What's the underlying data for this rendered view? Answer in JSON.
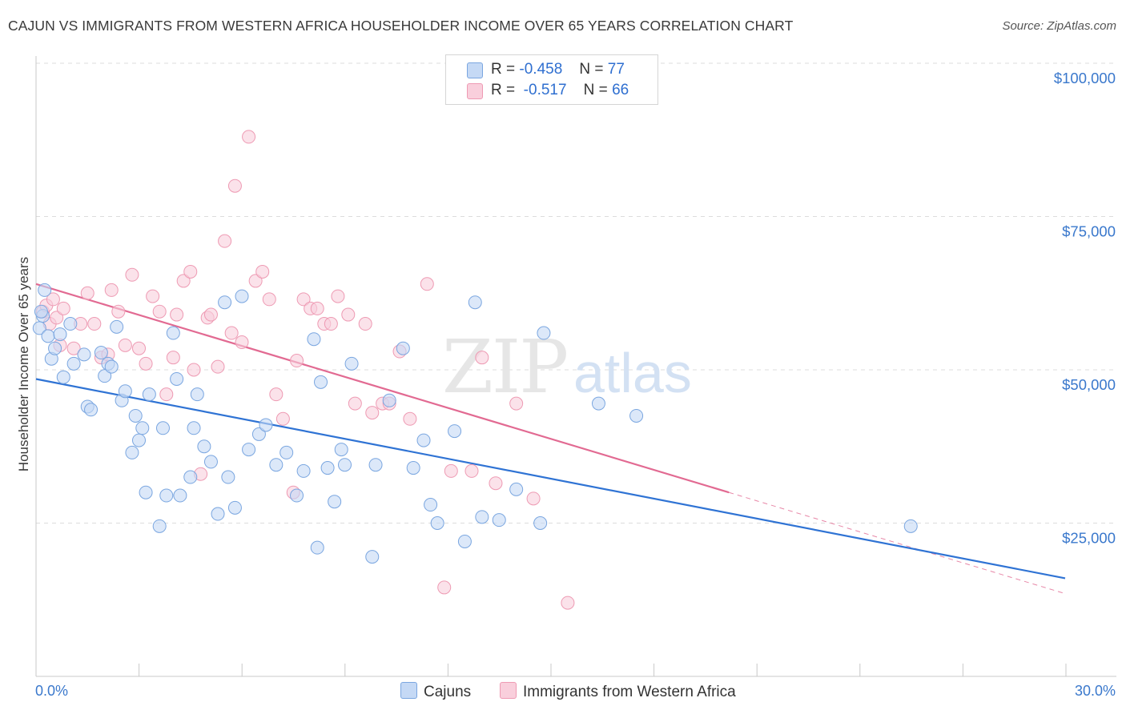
{
  "title": "CAJUN VS IMMIGRANTS FROM WESTERN AFRICA HOUSEHOLDER INCOME OVER 65 YEARS CORRELATION CHART",
  "source": "Source: ZipAtlas.com",
  "watermark": {
    "zip": "ZIP",
    "atlas": "atlas"
  },
  "colors": {
    "blue_fill": "#c5d9f5",
    "blue_stroke": "#7aa6e0",
    "blue_line": "#2f73d4",
    "pink_fill": "#f9cfdc",
    "pink_stroke": "#ee9ab3",
    "pink_line": "#e26a92",
    "axis_label": "#3a78cc",
    "grid": "#dcdcdc"
  },
  "legend": {
    "rows": [
      {
        "r_label": "R =",
        "r_value": "-0.458",
        "n_label": "N =",
        "n_value": "77"
      },
      {
        "r_label": "R =",
        "r_value": "-0.517",
        "n_label": "N =",
        "n_value": "66"
      }
    ]
  },
  "bottom_legend": {
    "series1": "Cajuns",
    "series2": "Immigrants from Western Africa"
  },
  "chart_data": {
    "type": "scatter",
    "title": "CAJUN VS IMMIGRANTS FROM WESTERN AFRICA HOUSEHOLDER INCOME OVER 65 YEARS CORRELATION CHART",
    "xlabel": "",
    "ylabel": "Householder Income Over 65 years",
    "xlim": [
      0,
      30
    ],
    "ylim": [
      0,
      105000
    ],
    "x_tick_labels": {
      "min": "0.0%",
      "max": "30.0%"
    },
    "y_ticks": [
      {
        "value": 100000,
        "label": "$100,000"
      },
      {
        "value": 75000,
        "label": "$75,000"
      },
      {
        "value": 50000,
        "label": "$50,000"
      },
      {
        "value": 25000,
        "label": "$25,000"
      }
    ],
    "series": [
      {
        "name": "Cajuns",
        "r": -0.458,
        "n": 77,
        "trend": {
          "x0": 0,
          "y0": 48500,
          "x1": 30,
          "y1": 16000,
          "dash_from": null
        },
        "points": [
          [
            0.1,
            56800
          ],
          [
            0.2,
            58800
          ],
          [
            0.25,
            63000
          ],
          [
            0.35,
            55500
          ],
          [
            0.45,
            51800
          ],
          [
            0.55,
            53500
          ],
          [
            0.7,
            55800
          ],
          [
            0.8,
            48800
          ],
          [
            1.0,
            57500
          ],
          [
            1.1,
            51000
          ],
          [
            1.4,
            52500
          ],
          [
            1.5,
            44000
          ],
          [
            1.6,
            43500
          ],
          [
            1.9,
            52800
          ],
          [
            2.0,
            49000
          ],
          [
            2.1,
            51000
          ],
          [
            2.2,
            50500
          ],
          [
            2.35,
            57000
          ],
          [
            2.5,
            45000
          ],
          [
            2.6,
            46500
          ],
          [
            2.8,
            36500
          ],
          [
            2.9,
            42500
          ],
          [
            3.0,
            38500
          ],
          [
            3.1,
            40500
          ],
          [
            3.2,
            30000
          ],
          [
            3.3,
            46000
          ],
          [
            3.6,
            24500
          ],
          [
            3.7,
            40500
          ],
          [
            3.8,
            29500
          ],
          [
            4.0,
            56000
          ],
          [
            4.1,
            48500
          ],
          [
            4.2,
            29500
          ],
          [
            4.5,
            32500
          ],
          [
            4.6,
            40500
          ],
          [
            4.7,
            46000
          ],
          [
            4.9,
            37500
          ],
          [
            5.1,
            35000
          ],
          [
            5.3,
            26500
          ],
          [
            5.5,
            61000
          ],
          [
            5.6,
            32500
          ],
          [
            5.8,
            27500
          ],
          [
            6.0,
            62000
          ],
          [
            6.2,
            37000
          ],
          [
            6.5,
            39500
          ],
          [
            6.7,
            41000
          ],
          [
            7.0,
            34500
          ],
          [
            7.3,
            36500
          ],
          [
            7.6,
            29500
          ],
          [
            7.8,
            33500
          ],
          [
            8.1,
            55000
          ],
          [
            8.2,
            21000
          ],
          [
            8.3,
            48000
          ],
          [
            8.5,
            34000
          ],
          [
            8.7,
            28500
          ],
          [
            8.9,
            37000
          ],
          [
            9.0,
            34500
          ],
          [
            9.2,
            51000
          ],
          [
            9.8,
            19500
          ],
          [
            9.9,
            34500
          ],
          [
            10.3,
            45000
          ],
          [
            10.7,
            53500
          ],
          [
            11.0,
            34000
          ],
          [
            11.3,
            38500
          ],
          [
            11.5,
            28000
          ],
          [
            11.7,
            25000
          ],
          [
            12.2,
            40000
          ],
          [
            12.5,
            22000
          ],
          [
            12.8,
            61000
          ],
          [
            13.0,
            26000
          ],
          [
            13.5,
            25500
          ],
          [
            14.0,
            30500
          ],
          [
            14.7,
            25000
          ],
          [
            14.8,
            56000
          ],
          [
            16.4,
            44500
          ],
          [
            17.5,
            42500
          ],
          [
            25.5,
            24500
          ],
          [
            0.15,
            59500
          ]
        ]
      },
      {
        "name": "Immigrants from Western Africa",
        "r": -0.517,
        "n": 66,
        "trend": {
          "x0": 0,
          "y0": 64000,
          "x1": 30,
          "y1": 13500,
          "dash_from": 20.2
        },
        "points": [
          [
            0.2,
            59500
          ],
          [
            0.3,
            60500
          ],
          [
            0.4,
            57500
          ],
          [
            0.5,
            61500
          ],
          [
            0.6,
            58500
          ],
          [
            0.7,
            54000
          ],
          [
            0.8,
            60000
          ],
          [
            1.1,
            53500
          ],
          [
            1.3,
            57500
          ],
          [
            1.5,
            62500
          ],
          [
            1.7,
            57500
          ],
          [
            1.9,
            52000
          ],
          [
            2.1,
            52500
          ],
          [
            2.2,
            63000
          ],
          [
            2.4,
            59500
          ],
          [
            2.6,
            54000
          ],
          [
            2.8,
            65500
          ],
          [
            3.0,
            53500
          ],
          [
            3.2,
            51000
          ],
          [
            3.4,
            62000
          ],
          [
            3.6,
            59500
          ],
          [
            3.8,
            46000
          ],
          [
            4.0,
            52000
          ],
          [
            4.1,
            59000
          ],
          [
            4.3,
            64500
          ],
          [
            4.5,
            66000
          ],
          [
            4.6,
            50000
          ],
          [
            4.8,
            33000
          ],
          [
            5.0,
            58500
          ],
          [
            5.1,
            59000
          ],
          [
            5.3,
            50500
          ],
          [
            5.5,
            71000
          ],
          [
            5.7,
            56000
          ],
          [
            5.8,
            80000
          ],
          [
            6.0,
            54500
          ],
          [
            6.2,
            88000
          ],
          [
            6.4,
            64500
          ],
          [
            6.6,
            66000
          ],
          [
            6.8,
            61500
          ],
          [
            7.0,
            46000
          ],
          [
            7.2,
            42000
          ],
          [
            7.5,
            30000
          ],
          [
            7.6,
            51500
          ],
          [
            7.8,
            61500
          ],
          [
            8.0,
            60000
          ],
          [
            8.2,
            60000
          ],
          [
            8.4,
            57500
          ],
          [
            8.6,
            57500
          ],
          [
            8.8,
            62000
          ],
          [
            9.1,
            59000
          ],
          [
            9.3,
            44500
          ],
          [
            9.6,
            57500
          ],
          [
            9.8,
            43000
          ],
          [
            10.1,
            44500
          ],
          [
            10.3,
            44500
          ],
          [
            10.6,
            53000
          ],
          [
            10.9,
            42000
          ],
          [
            11.4,
            64000
          ],
          [
            11.9,
            14500
          ],
          [
            12.1,
            33500
          ],
          [
            12.7,
            33500
          ],
          [
            13.0,
            52000
          ],
          [
            13.4,
            31500
          ],
          [
            14.0,
            44500
          ],
          [
            14.5,
            29000
          ],
          [
            15.5,
            12000
          ]
        ]
      }
    ]
  }
}
